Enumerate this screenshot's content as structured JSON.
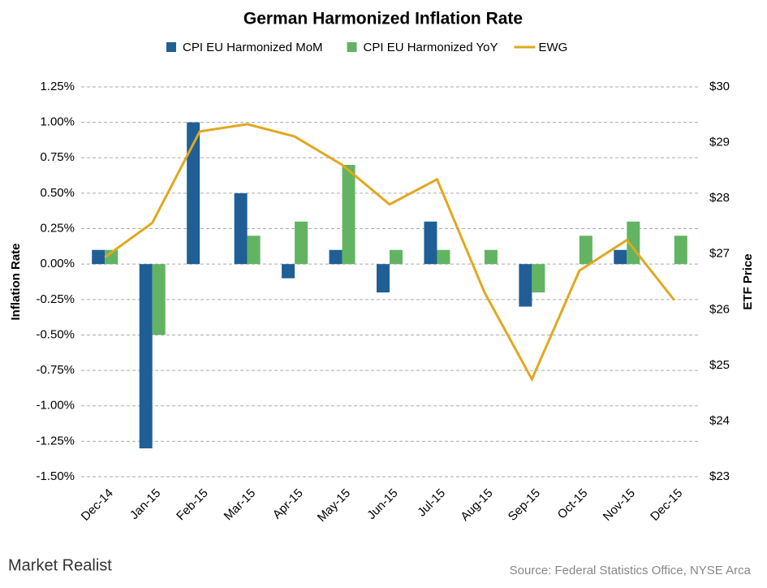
{
  "chart_data": {
    "type": "bar_line",
    "title": "German Harmonized Inflation Rate",
    "ylabel": "Inflation Rate",
    "y2label": "ETF Price",
    "source": "Source:  Federal Statistics Office, NYSE Arca",
    "brand": "Market Realist",
    "categories": [
      "Dec-14",
      "Jan-15",
      "Feb-15",
      "Mar-15",
      "Apr-15",
      "May-15",
      "Jun-15",
      "Jul-15",
      "Aug-15",
      "Sep-15",
      "Oct-15",
      "Nov-15",
      "Dec-15"
    ],
    "series": [
      {
        "name": "CPI EU Harmonized MoM",
        "type": "bar",
        "color": "#1f5f96",
        "values": [
          0.1,
          -1.3,
          1.0,
          0.5,
          -0.1,
          0.1,
          -0.2,
          0.3,
          0,
          -0.3,
          0,
          0.1,
          0
        ]
      },
      {
        "name": "CPI EU Harmonized YoY",
        "type": "bar",
        "color": "#62b462",
        "values": [
          0.1,
          -0.5,
          0,
          0.2,
          0.3,
          0.7,
          0.1,
          0.1,
          0.1,
          -0.2,
          0.2,
          0.3,
          0.2
        ]
      },
      {
        "name": "EWG",
        "type": "line",
        "axis": "y2",
        "color": "#e0a81e",
        "values": [
          26.94,
          27.56,
          29.2,
          29.33,
          29.11,
          28.6,
          27.89,
          28.34,
          26.31,
          24.75,
          26.7,
          27.25,
          26.17
        ]
      }
    ],
    "ylim": [
      -1.5,
      1.25
    ],
    "yticks": [
      {
        "value": 1.25,
        "label": "1.25%"
      },
      {
        "value": 1.0,
        "label": "1.00%"
      },
      {
        "value": 0.75,
        "label": "0.75%"
      },
      {
        "value": 0.5,
        "label": "0.50%"
      },
      {
        "value": 0.25,
        "label": "0.25%"
      },
      {
        "value": 0,
        "label": "0.00%"
      },
      {
        "value": -0.25,
        "label": "-0.25%"
      },
      {
        "value": -0.5,
        "label": "-0.50%"
      },
      {
        "value": -0.75,
        "label": "-0.75%"
      },
      {
        "value": -1.0,
        "label": "-1.00%"
      },
      {
        "value": -1.25,
        "label": "-1.25%"
      },
      {
        "value": -1.5,
        "label": "-1.50%"
      }
    ],
    "y2lim": [
      23,
      30
    ],
    "y2ticks": [
      {
        "value": 30,
        "label": "$30"
      },
      {
        "value": 29,
        "label": "$29"
      },
      {
        "value": 28,
        "label": "$28"
      },
      {
        "value": 27,
        "label": "$27"
      },
      {
        "value": 26,
        "label": "$26"
      },
      {
        "value": 25,
        "label": "$25"
      },
      {
        "value": 24,
        "label": "$24"
      },
      {
        "value": 23,
        "label": "$23"
      }
    ],
    "grid": true
  }
}
